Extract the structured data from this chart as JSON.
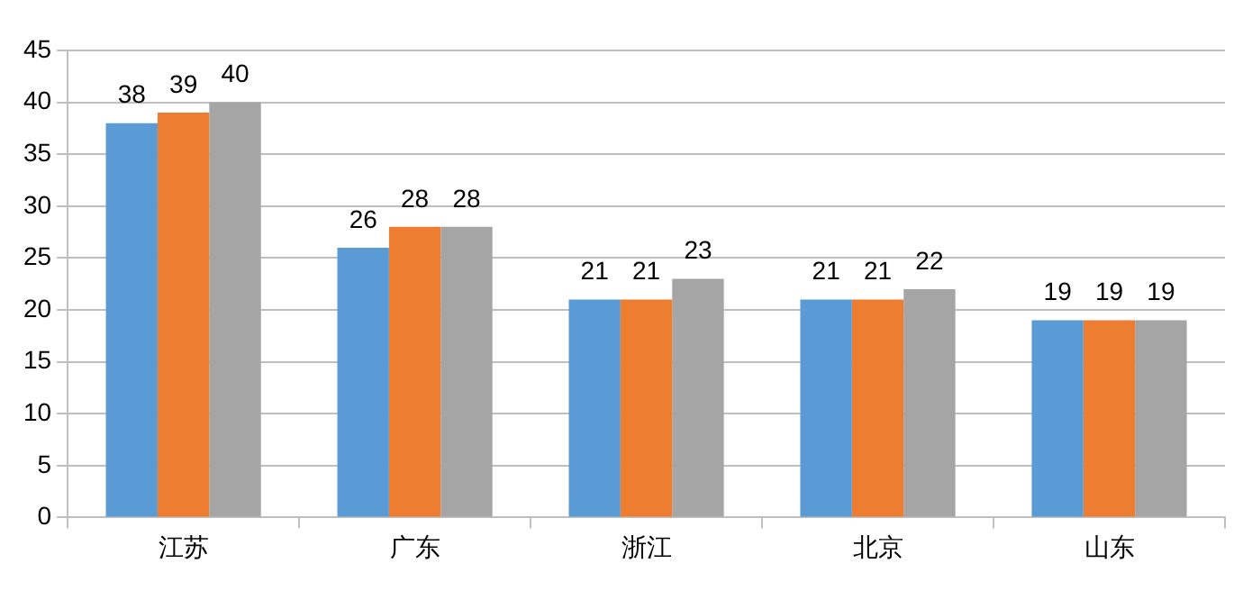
{
  "chart_data": {
    "type": "bar",
    "categories": [
      "江苏",
      "广东",
      "浙江",
      "北京",
      "山东"
    ],
    "series": [
      {
        "color": "#5b9bd5",
        "values": [
          38,
          26,
          21,
          21,
          19
        ]
      },
      {
        "color": "#ed7d31",
        "values": [
          39,
          28,
          21,
          21,
          19
        ]
      },
      {
        "color": "#a5a5a5",
        "values": [
          40,
          28,
          23,
          22,
          19
        ]
      }
    ],
    "ylim": [
      0,
      45
    ],
    "yticks": [
      0,
      5,
      10,
      15,
      20,
      25,
      30,
      35,
      40,
      45
    ],
    "grid": "y",
    "data_labels": true,
    "legend": false
  }
}
